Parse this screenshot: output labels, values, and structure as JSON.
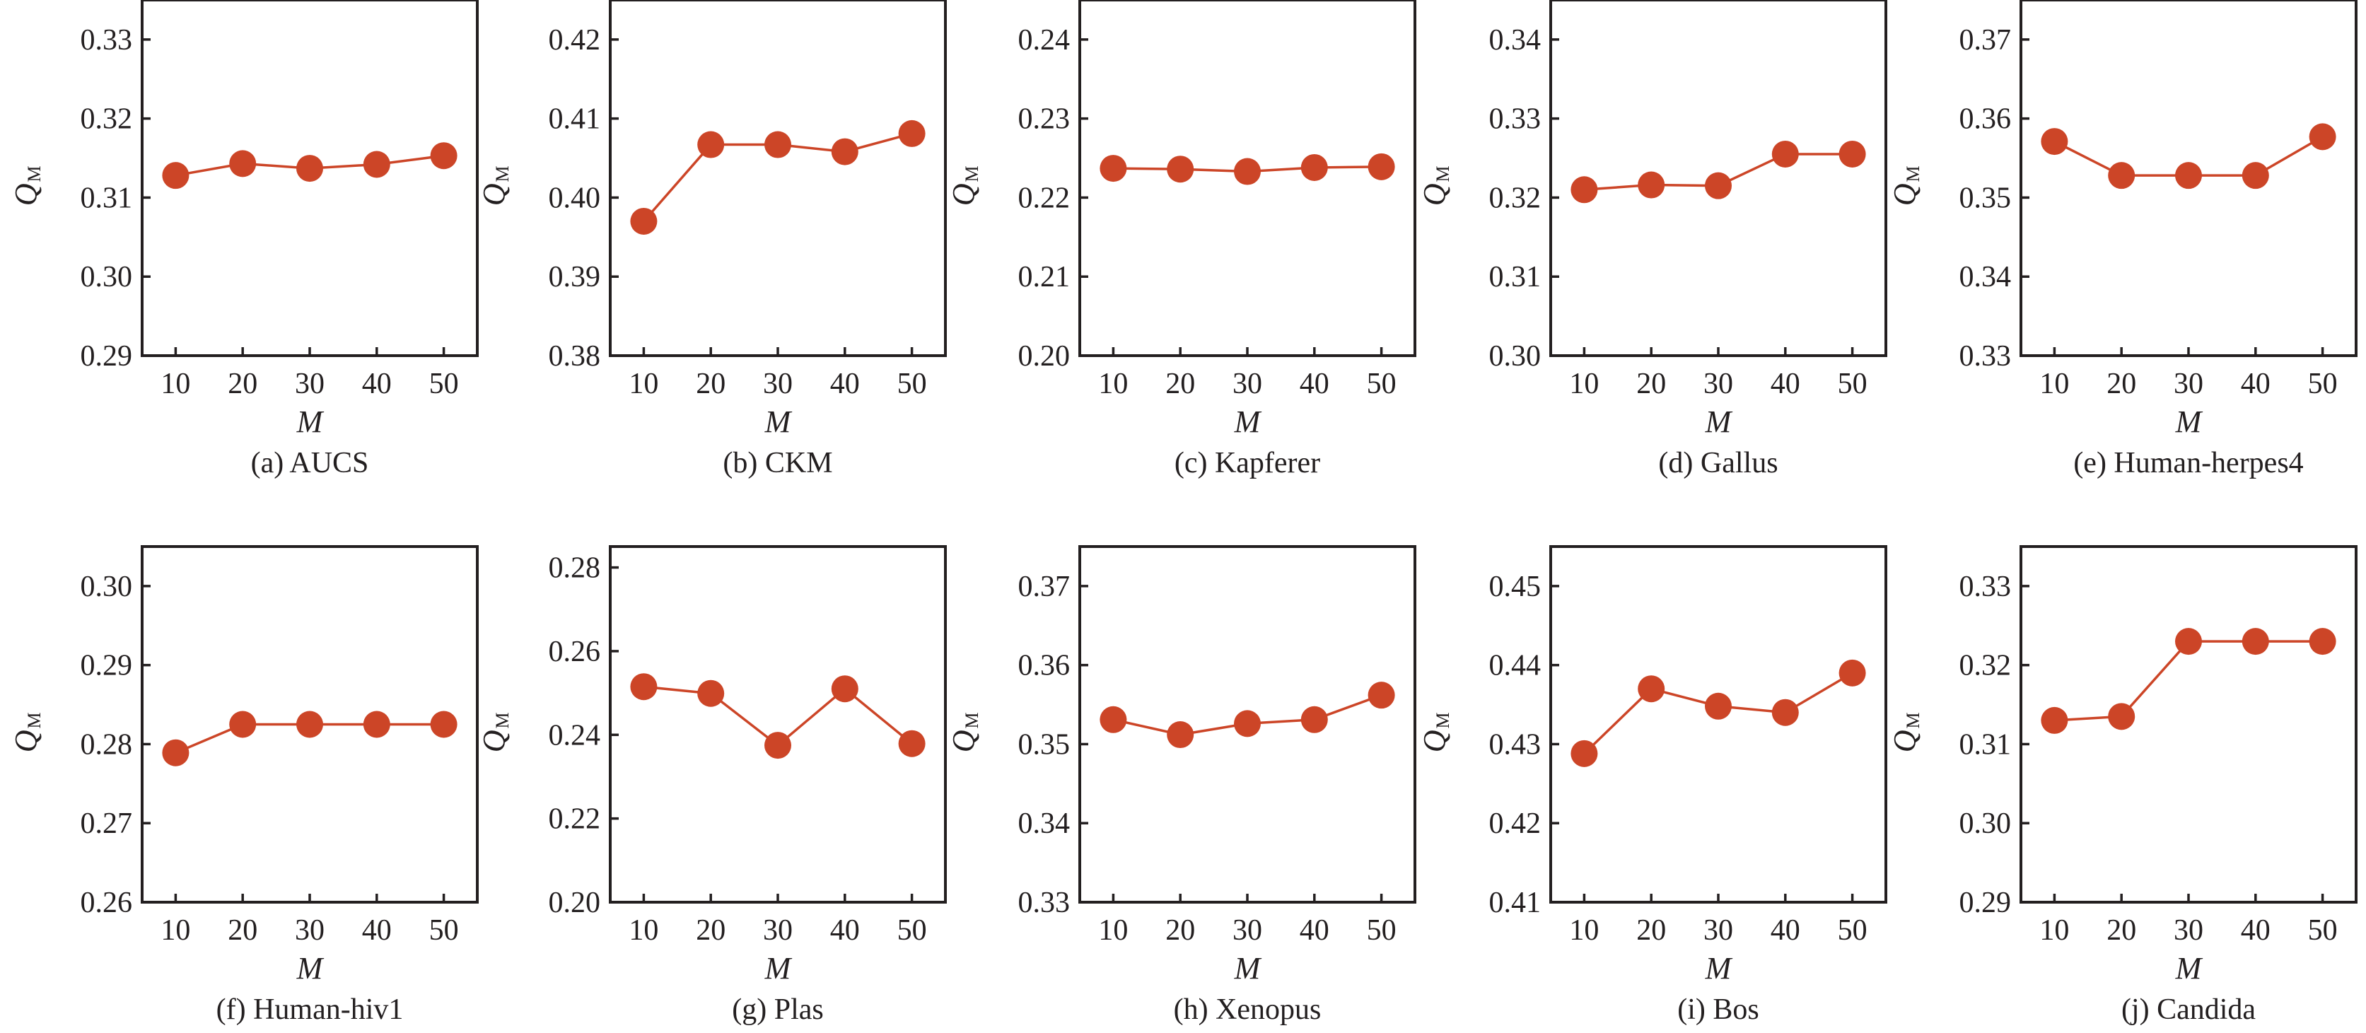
{
  "chart_data": [
    {
      "type": "line",
      "panel": "a",
      "caption": "(a) AUCS",
      "xlabel": "M",
      "ylabel": "Q",
      "ylabel_subscript": "M",
      "x": [
        10,
        20,
        30,
        40,
        50
      ],
      "x_ticks": [
        "10",
        "20",
        "30",
        "40",
        "50"
      ],
      "xlim": [
        5,
        55
      ],
      "ylim": [
        0.29,
        0.335
      ],
      "y_ticks": [
        "0.29",
        "0.30",
        "0.31",
        "0.32",
        "0.33"
      ],
      "y_tick_values": [
        0.29,
        0.3,
        0.31,
        0.32,
        0.33
      ],
      "series": [
        {
          "name": "QM",
          "values": [
            0.3128,
            0.3143,
            0.3137,
            0.3142,
            0.3153
          ]
        }
      ],
      "grid": false
    },
    {
      "type": "line",
      "panel": "b",
      "caption": "(b) CKM",
      "xlabel": "M",
      "ylabel": "Q",
      "ylabel_subscript": "M",
      "x": [
        10,
        20,
        30,
        40,
        50
      ],
      "x_ticks": [
        "10",
        "20",
        "30",
        "40",
        "50"
      ],
      "xlim": [
        5,
        55
      ],
      "ylim": [
        0.38,
        0.425
      ],
      "y_ticks": [
        "0.38",
        "0.39",
        "0.40",
        "0.41",
        "0.42"
      ],
      "y_tick_values": [
        0.38,
        0.39,
        0.4,
        0.41,
        0.42
      ],
      "series": [
        {
          "name": "QM",
          "values": [
            0.397,
            0.4067,
            0.4067,
            0.4058,
            0.4081
          ]
        }
      ],
      "grid": false
    },
    {
      "type": "line",
      "panel": "c",
      "caption": "(c) Kapferer",
      "xlabel": "M",
      "ylabel": "Q",
      "ylabel_subscript": "M",
      "x": [
        10,
        20,
        30,
        40,
        50
      ],
      "x_ticks": [
        "10",
        "20",
        "30",
        "40",
        "50"
      ],
      "xlim": [
        5,
        55
      ],
      "ylim": [
        0.2,
        0.245
      ],
      "y_ticks": [
        "0.20",
        "0.21",
        "0.22",
        "0.23",
        "0.24"
      ],
      "y_tick_values": [
        0.2,
        0.21,
        0.22,
        0.23,
        0.24
      ],
      "series": [
        {
          "name": "QM",
          "values": [
            0.2237,
            0.2236,
            0.2233,
            0.2238,
            0.2239
          ]
        }
      ],
      "grid": false
    },
    {
      "type": "line",
      "panel": "d",
      "caption": "(d) Gallus",
      "xlabel": "M",
      "ylabel": "Q",
      "ylabel_subscript": "M",
      "x": [
        10,
        20,
        30,
        40,
        50
      ],
      "x_ticks": [
        "10",
        "20",
        "30",
        "40",
        "50"
      ],
      "xlim": [
        5,
        55
      ],
      "ylim": [
        0.3,
        0.345
      ],
      "y_ticks": [
        "0.30",
        "0.31",
        "0.32",
        "0.33",
        "0.34"
      ],
      "y_tick_values": [
        0.3,
        0.31,
        0.32,
        0.33,
        0.34
      ],
      "series": [
        {
          "name": "QM",
          "values": [
            0.321,
            0.3216,
            0.3215,
            0.3255,
            0.3255
          ]
        }
      ],
      "grid": false
    },
    {
      "type": "line",
      "panel": "e",
      "caption": "(e) Human-herpes4",
      "xlabel": "M",
      "ylabel": "Q",
      "ylabel_subscript": "M",
      "x": [
        10,
        20,
        30,
        40,
        50
      ],
      "x_ticks": [
        "10",
        "20",
        "30",
        "40",
        "50"
      ],
      "xlim": [
        5,
        55
      ],
      "ylim": [
        0.33,
        0.375
      ],
      "y_ticks": [
        "0.33",
        "0.34",
        "0.35",
        "0.36",
        "0.37"
      ],
      "y_tick_values": [
        0.33,
        0.34,
        0.35,
        0.36,
        0.37
      ],
      "series": [
        {
          "name": "QM",
          "values": [
            0.3571,
            0.3528,
            0.3528,
            0.3528,
            0.3577
          ]
        }
      ],
      "grid": false
    },
    {
      "type": "line",
      "panel": "f",
      "caption": "(f) Human-hiv1",
      "xlabel": "M",
      "ylabel": "Q",
      "ylabel_subscript": "M",
      "x": [
        10,
        20,
        30,
        40,
        50
      ],
      "x_ticks": [
        "10",
        "20",
        "30",
        "40",
        "50"
      ],
      "xlim": [
        5,
        55
      ],
      "ylim": [
        0.26,
        0.305
      ],
      "y_ticks": [
        "0.26",
        "0.27",
        "0.28",
        "0.29",
        "0.30"
      ],
      "y_tick_values": [
        0.26,
        0.27,
        0.28,
        0.29,
        0.3
      ],
      "series": [
        {
          "name": "QM",
          "values": [
            0.2789,
            0.2825,
            0.2825,
            0.2825,
            0.2825
          ]
        }
      ],
      "grid": false
    },
    {
      "type": "line",
      "panel": "g",
      "caption": "(g) Plas",
      "xlabel": "M",
      "ylabel": "Q",
      "ylabel_subscript": "M",
      "x": [
        10,
        20,
        30,
        40,
        50
      ],
      "x_ticks": [
        "10",
        "20",
        "30",
        "40",
        "50"
      ],
      "xlim": [
        5,
        55
      ],
      "ylim": [
        0.2,
        0.285
      ],
      "y_ticks": [
        "0.20",
        "0.22",
        "0.24",
        "0.26",
        "0.28"
      ],
      "y_tick_values": [
        0.2,
        0.22,
        0.24,
        0.26,
        0.28
      ],
      "series": [
        {
          "name": "QM",
          "values": [
            0.2515,
            0.2499,
            0.2375,
            0.251,
            0.2379
          ]
        }
      ],
      "grid": false
    },
    {
      "type": "line",
      "panel": "h",
      "caption": "(h) Xenopus",
      "xlabel": "M",
      "ylabel": "Q",
      "ylabel_subscript": "M",
      "x": [
        10,
        20,
        30,
        40,
        50
      ],
      "x_ticks": [
        "10",
        "20",
        "30",
        "40",
        "50"
      ],
      "xlim": [
        5,
        55
      ],
      "ylim": [
        0.33,
        0.375
      ],
      "y_ticks": [
        "0.33",
        "0.34",
        "0.35",
        "0.36",
        "0.37"
      ],
      "y_tick_values": [
        0.33,
        0.34,
        0.35,
        0.36,
        0.37
      ],
      "series": [
        {
          "name": "QM",
          "values": [
            0.3531,
            0.3512,
            0.3526,
            0.3531,
            0.3562
          ]
        }
      ],
      "grid": false
    },
    {
      "type": "line",
      "panel": "i",
      "caption": "(i) Bos",
      "xlabel": "M",
      "ylabel": "Q",
      "ylabel_subscript": "M",
      "x": [
        10,
        20,
        30,
        40,
        50
      ],
      "x_ticks": [
        "10",
        "20",
        "30",
        "40",
        "50"
      ],
      "xlim": [
        5,
        55
      ],
      "ylim": [
        0.41,
        0.455
      ],
      "y_ticks": [
        "0.41",
        "0.42",
        "0.43",
        "0.44",
        "0.45"
      ],
      "y_tick_values": [
        0.41,
        0.42,
        0.43,
        0.44,
        0.45
      ],
      "series": [
        {
          "name": "QM",
          "values": [
            0.4288,
            0.437,
            0.4348,
            0.434,
            0.439
          ]
        }
      ],
      "grid": false
    },
    {
      "type": "line",
      "panel": "j",
      "caption": "(j) Candida",
      "xlabel": "M",
      "ylabel": "Q",
      "ylabel_subscript": "M",
      "x": [
        10,
        20,
        30,
        40,
        50
      ],
      "x_ticks": [
        "10",
        "20",
        "30",
        "40",
        "50"
      ],
      "xlim": [
        5,
        55
      ],
      "ylim": [
        0.29,
        0.335
      ],
      "y_ticks": [
        "0.29",
        "0.30",
        "0.31",
        "0.32",
        "0.33"
      ],
      "y_tick_values": [
        0.29,
        0.3,
        0.31,
        0.32,
        0.33
      ],
      "series": [
        {
          "name": "QM",
          "values": [
            0.313,
            0.3135,
            0.323,
            0.323,
            0.323
          ]
        }
      ],
      "grid": false
    }
  ],
  "colors": {
    "series": "#cc4527",
    "axis": "#231f20"
  }
}
